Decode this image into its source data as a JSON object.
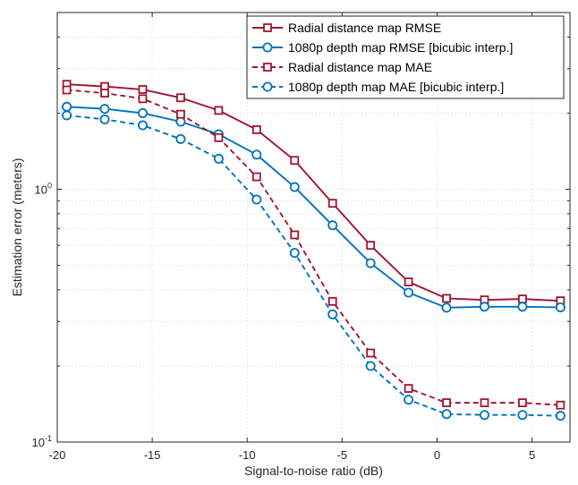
{
  "chart_data": {
    "type": "line",
    "xlabel": "Signal-to-noise ratio (dB)",
    "ylabel": "Estimation error (meters)",
    "xlim": [
      -20,
      7
    ],
    "ylim": [
      0.1,
      5
    ],
    "yscale": "log",
    "grid": true,
    "legend_position": "top-right",
    "x_ticks": [
      {
        "value": -20,
        "label": "-20"
      },
      {
        "value": -15,
        "label": "-15"
      },
      {
        "value": -10,
        "label": "-10"
      },
      {
        "value": -5,
        "label": "-5"
      },
      {
        "value": 0,
        "label": "0"
      },
      {
        "value": 5,
        "label": "5"
      }
    ],
    "y_ticks": [
      {
        "value": 0.1,
        "base": "10",
        "exp": "-1"
      },
      {
        "value": 1,
        "base": "10",
        "exp": "0"
      }
    ],
    "x": [
      -19.5,
      -17.5,
      -15.5,
      -13.5,
      -11.5,
      -9.5,
      -7.5,
      -5.5,
      -3.5,
      -1.5,
      0.5,
      2.5,
      4.5,
      6.5
    ],
    "series": [
      {
        "name": "Radial distance map RMSE",
        "color": "#A2142F",
        "marker": "square",
        "dash": "solid",
        "values": [
          2.6,
          2.55,
          2.48,
          2.3,
          2.05,
          1.72,
          1.3,
          0.88,
          0.6,
          0.43,
          0.37,
          0.365,
          0.368,
          0.362
        ]
      },
      {
        "name": "1080p depth map RMSE [bicubic interp.]",
        "color": "#0072BD",
        "marker": "circle",
        "dash": "solid",
        "values": [
          2.12,
          2.08,
          2.0,
          1.85,
          1.65,
          1.37,
          1.02,
          0.72,
          0.51,
          0.39,
          0.34,
          0.343,
          0.343,
          0.341
        ]
      },
      {
        "name": "Radial distance map MAE",
        "color": "#A2142F",
        "marker": "square",
        "dash": "dashed",
        "values": [
          2.47,
          2.4,
          2.28,
          1.98,
          1.6,
          1.12,
          0.66,
          0.36,
          0.225,
          0.163,
          0.143,
          0.143,
          0.143,
          0.14
        ]
      },
      {
        "name": "1080p depth map MAE [bicubic interp.]",
        "color": "#0072BD",
        "marker": "circle",
        "dash": "dashed",
        "values": [
          1.96,
          1.89,
          1.79,
          1.58,
          1.32,
          0.91,
          0.56,
          0.32,
          0.2,
          0.147,
          0.129,
          0.128,
          0.128,
          0.127
        ]
      }
    ]
  }
}
